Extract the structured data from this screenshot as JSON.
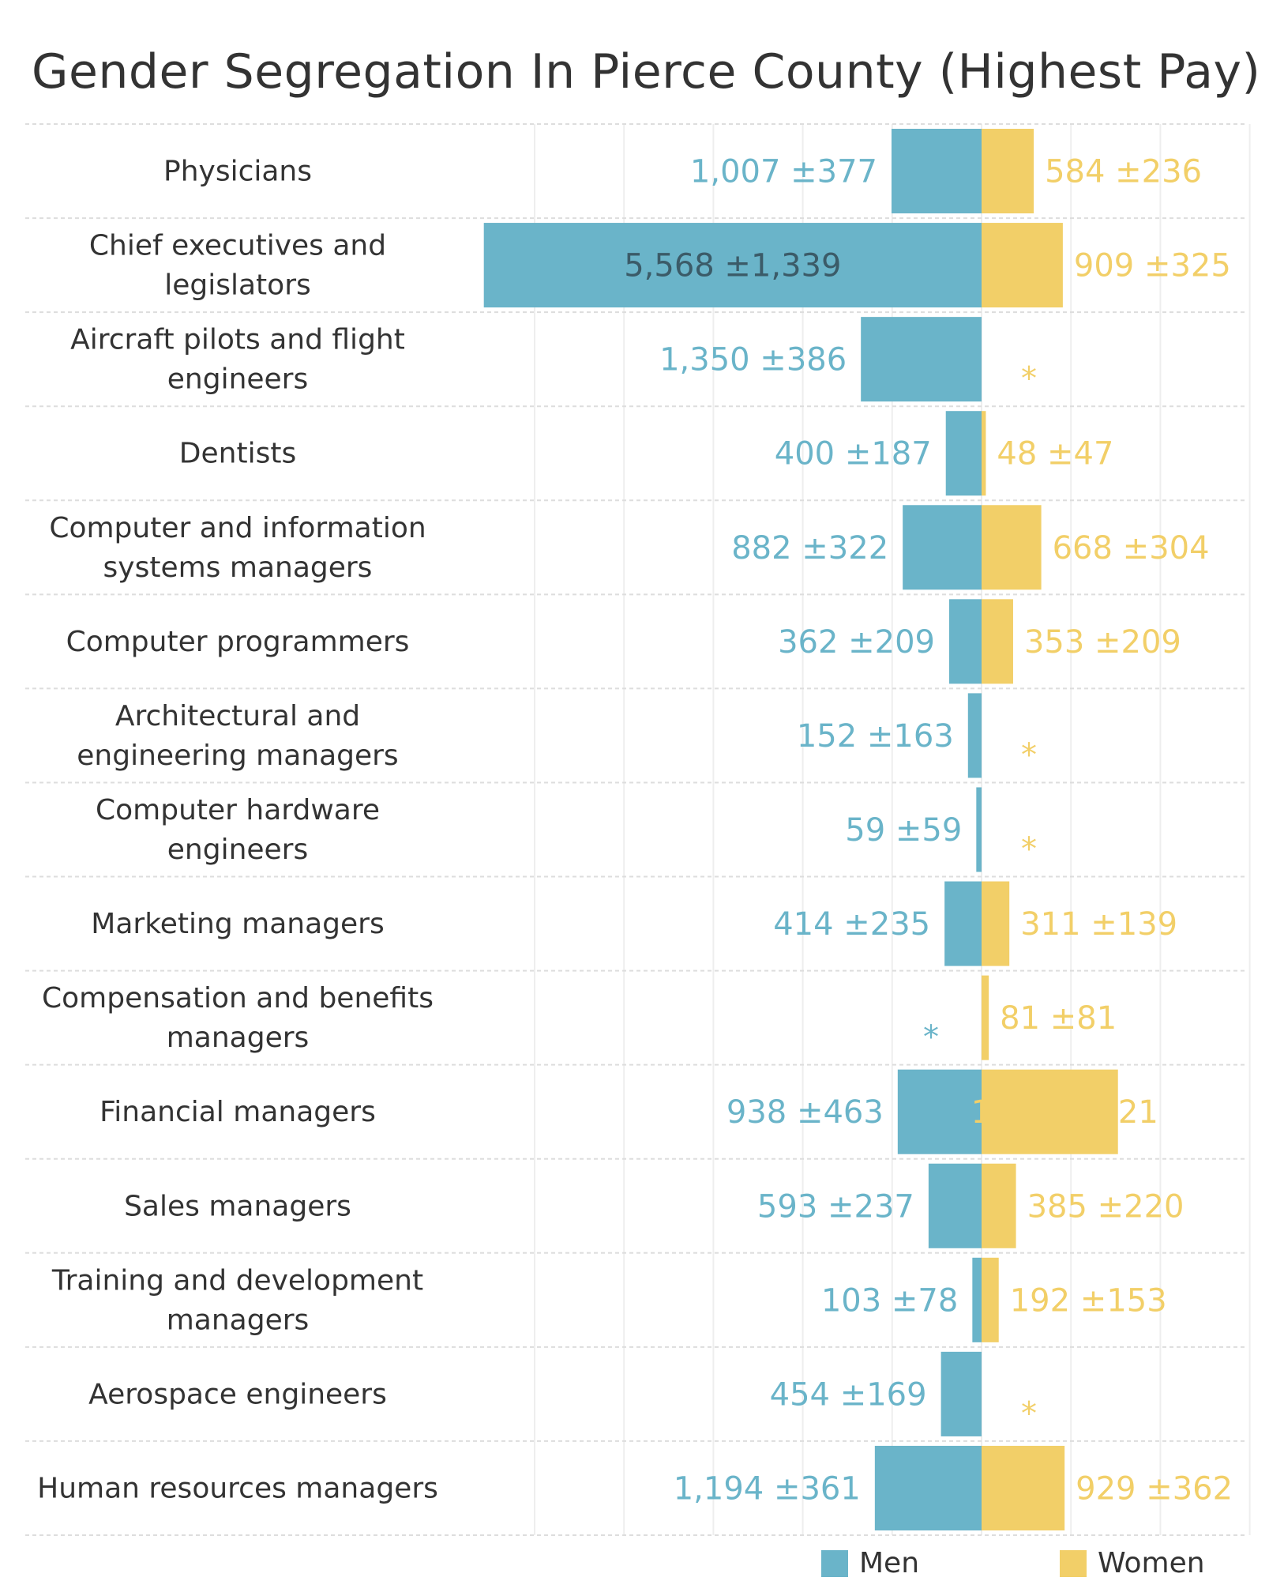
{
  "title": "Gender Segregation In Pierce County (Highest Pay)",
  "colors": {
    "men": "#6ab4c9",
    "women": "#f2cf68",
    "men_label_inside": "#3b5b68",
    "row_label": "#333333",
    "grid": "#eeeeee",
    "separator": "#dddddd"
  },
  "chart_data": {
    "type": "bar",
    "orientation": "horizontal-diverging",
    "title": "Gender Segregation In Pierce County (Highest Pay)",
    "xlim": [
      -5000,
      3000
    ],
    "grid": "vertical, every 1000",
    "legend_placement": "bottom-right",
    "missing_marker": "*",
    "categories": [
      "Physicians",
      "Chief executives and legislators",
      "Aircraft pilots and flight engineers",
      "Dentists",
      "Computer and information systems managers",
      "Computer programmers",
      "Architectural and engineering managers",
      "Computer hardware engineers",
      "Marketing managers",
      "Compensation and benefits managers",
      "Financial managers",
      "Sales managers",
      "Training and development managers",
      "Aerospace engineers",
      "Human resources managers"
    ],
    "series": [
      {
        "name": "Men",
        "direction": "left",
        "values": [
          1007,
          5568,
          1350,
          400,
          882,
          362,
          152,
          59,
          414,
          null,
          938,
          593,
          103,
          454,
          1194
        ],
        "moe": [
          377,
          1339,
          386,
          187,
          322,
          209,
          163,
          59,
          235,
          null,
          463,
          237,
          78,
          169,
          361
        ],
        "labels": [
          "1,007 ±377",
          "5,568 ±1,339",
          "1,350 ±386",
          "400 ±187",
          "882 ±322",
          "362 ±209",
          "152 ±163",
          "59 ±59",
          "414 ±235",
          "*",
          "938 ±463",
          "593 ±237",
          "103 ±78",
          "454 ±169",
          "1,194 ±361"
        ]
      },
      {
        "name": "Women",
        "direction": "right",
        "values": [
          584,
          909,
          null,
          48,
          668,
          353,
          null,
          null,
          311,
          81,
          1526,
          385,
          192,
          null,
          929
        ],
        "moe": [
          236,
          325,
          null,
          47,
          304,
          209,
          null,
          null,
          139,
          81,
          421,
          220,
          153,
          null,
          362
        ],
        "labels": [
          "584 ±236",
          "909 ±325",
          "*",
          "48 ±47",
          "668 ±304",
          "353 ±209",
          "*",
          "*",
          "311 ±139",
          "81 ±81",
          "1,526 ±421",
          "385 ±220",
          "192 ±153",
          "*",
          "929 ±362"
        ]
      }
    ]
  },
  "row_labels": [
    [
      "Physicians"
    ],
    [
      "Chief executives and",
      "legislators"
    ],
    [
      "Aircraft pilots and flight",
      "engineers"
    ],
    [
      "Dentists"
    ],
    [
      "Computer and information",
      "systems managers"
    ],
    [
      "Computer programmers"
    ],
    [
      "Architectural and",
      "engineering managers"
    ],
    [
      "Computer hardware",
      "engineers"
    ],
    [
      "Marketing managers"
    ],
    [
      "Compensation and benefits",
      "managers"
    ],
    [
      "Financial managers"
    ],
    [
      "Sales managers"
    ],
    [
      "Training and development",
      "managers"
    ],
    [
      "Aerospace engineers"
    ],
    [
      "Human resources managers"
    ]
  ],
  "legend": {
    "men": "Men",
    "women": "Women"
  }
}
